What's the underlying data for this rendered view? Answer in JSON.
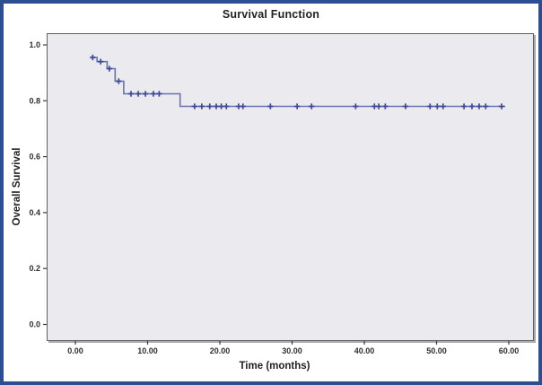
{
  "window": {
    "title": "Survival Function"
  },
  "colors": {
    "frame_border": "#2d4e91",
    "plot_background": "#ebebef",
    "plot_border": "#606060",
    "curve": "#6a70b0",
    "censor_mark": "#3e4897",
    "tick_line": "#3a3a3a",
    "text": "#262626"
  },
  "chart_data": {
    "type": "line",
    "subtype": "kaplan-meier-step-function",
    "title": "Survival Function",
    "xlabel": "Time (months)",
    "ylabel": "Overall Survival",
    "xlim": [
      -4,
      65.5
    ],
    "ylim": [
      -0.06,
      1.045
    ],
    "x_ticks": [
      0,
      10,
      20,
      30,
      40,
      50,
      60
    ],
    "x_tick_labels": [
      "0.00",
      "10.00",
      "20.00",
      "30.00",
      "40.00",
      "50.00",
      "60.00"
    ],
    "y_ticks": [
      0.0,
      0.2,
      0.4,
      0.6,
      0.8,
      1.0
    ],
    "y_tick_labels": [
      "0.0",
      "0.2",
      "0.4",
      "0.6",
      "0.8",
      "1.0"
    ],
    "grid": false,
    "legend": false,
    "series": [
      {
        "name": "Overall Survival",
        "steps": [
          [
            2.1,
            0.955
          ],
          [
            3.0,
            0.94
          ],
          [
            4.4,
            0.915
          ],
          [
            5.5,
            0.87
          ],
          [
            6.7,
            0.825
          ],
          [
            14.5,
            0.78
          ]
        ],
        "end_time": 59.5,
        "censor_times": [
          2.4,
          3.5,
          4.7,
          6.0,
          7.7,
          8.7,
          9.7,
          10.8,
          11.6,
          16.5,
          17.5,
          18.6,
          19.5,
          20.2,
          20.9,
          22.6,
          23.2,
          27.0,
          30.7,
          32.7,
          38.8,
          41.4,
          42.0,
          42.9,
          45.7,
          49.1,
          50.1,
          50.9,
          53.8,
          54.9,
          55.9,
          56.8,
          59.0
        ]
      }
    ]
  }
}
